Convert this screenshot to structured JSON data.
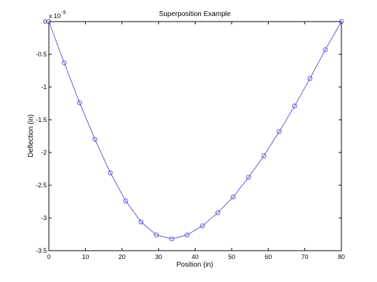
{
  "chart_data": {
    "type": "line",
    "title": "Superposition Example",
    "xlabel": "Position (in)",
    "ylabel": "Deflection (in)",
    "y_multiplier_base": "x 10",
    "y_multiplier_exp": "-5",
    "xlim": [
      0,
      80
    ],
    "ylim": [
      -3.5,
      0
    ],
    "y_scale_factor": 1e-05,
    "grid": false,
    "legend": "none",
    "x_ticks": [
      0,
      10,
      20,
      30,
      40,
      50,
      60,
      70,
      80
    ],
    "x_tick_labels": [
      "0",
      "10",
      "20",
      "30",
      "40",
      "50",
      "60",
      "70",
      "80"
    ],
    "y_ticks": [
      0,
      -0.5,
      -1,
      -1.5,
      -2,
      -2.5,
      -3,
      -3.5
    ],
    "y_tick_labels": [
      "0",
      "-0.5",
      "-1",
      "-1.5",
      "-2",
      "-2.5",
      "-3",
      "-3.5"
    ],
    "series": [
      {
        "line_color": "#4a4ad0",
        "marker": "circle",
        "x": [
          0,
          4.2,
          8.4,
          12.6,
          16.8,
          21,
          25.2,
          29.4,
          33.6,
          37.8,
          42,
          46.2,
          50.4,
          54.6,
          58.8,
          63,
          67.2,
          71.4,
          75.6,
          80
        ],
        "y": [
          0,
          -0.63,
          -1.24,
          -1.8,
          -2.31,
          -2.74,
          -3.06,
          -3.26,
          -3.32,
          -3.26,
          -3.12,
          -2.92,
          -2.68,
          -2.38,
          -2.05,
          -1.68,
          -1.29,
          -0.87,
          -0.43,
          0
        ]
      }
    ]
  }
}
